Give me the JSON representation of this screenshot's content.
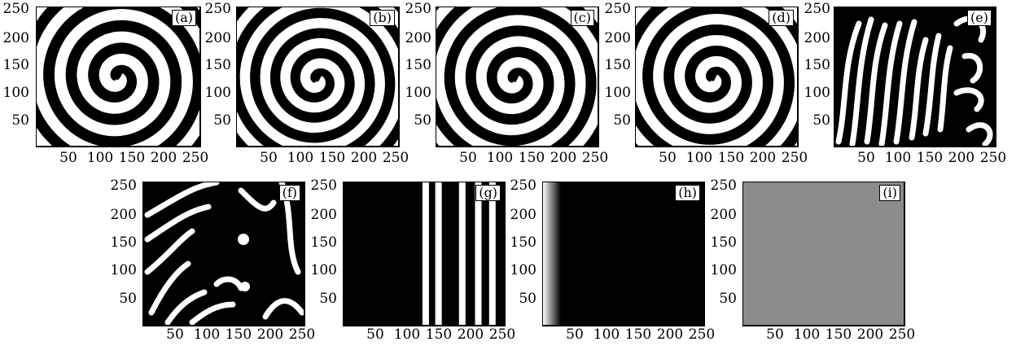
{
  "figure": {
    "panels": [
      {
        "label": "(a)",
        "pattern": "spiral",
        "arms": 1,
        "turns": 9.5,
        "center": [
          125,
          122
        ]
      },
      {
        "label": "(b)",
        "pattern": "spiral",
        "arms": 1,
        "turns": 10.5,
        "center": [
          125,
          118
        ]
      },
      {
        "label": "(c)",
        "pattern": "spiral",
        "arms": 1,
        "turns": 10.0,
        "center": [
          122,
          118
        ]
      },
      {
        "label": "(d)",
        "pattern": "spiral",
        "arms": 1,
        "turns": 10.0,
        "center": [
          120,
          120
        ]
      },
      {
        "label": "(e)",
        "pattern": "turbulent"
      },
      {
        "label": "(f)",
        "pattern": "turbulent"
      },
      {
        "label": "(g)",
        "pattern": "stripes",
        "stripes_x": [
          128,
          148,
          185,
          210,
          232
        ]
      },
      {
        "label": "(h)",
        "pattern": "edge-gradient"
      },
      {
        "label": "(i)",
        "pattern": "uniform",
        "fill": "#8c8c8c"
      }
    ],
    "y_ticks": [
      "250",
      "200",
      "150",
      "100",
      "50"
    ],
    "x_ticks": [
      "50",
      "100",
      "150",
      "200",
      "250"
    ]
  }
}
